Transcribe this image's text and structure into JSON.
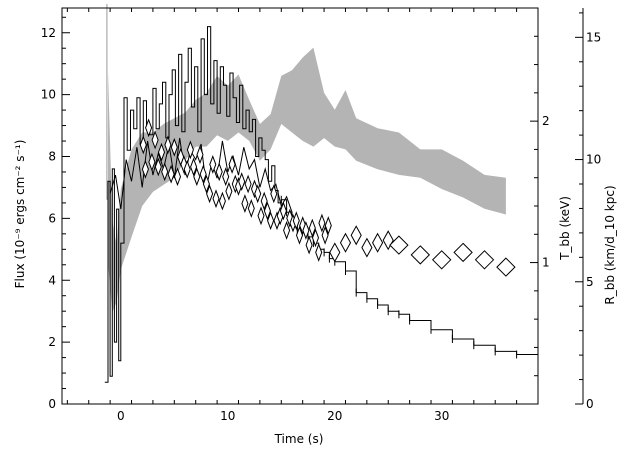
{
  "chart_data": {
    "type": "line",
    "title": "",
    "xlabel": "Time (s)",
    "ylabel_left": "Flux (10⁻⁹ ergs cm⁻² s⁻¹)",
    "ylabel_right_inner": "T_bb (keV)",
    "ylabel_right_outer": "R_bb (km/d_10 kpc)",
    "xlim": [
      -5.5,
      39
    ],
    "ylim_left": [
      0,
      12.8
    ],
    "ylim_T": [
      0,
      2.8
    ],
    "ylim_R": [
      0,
      16.2
    ],
    "x_ticks": [
      0,
      10,
      20,
      30
    ],
    "y_left_ticks": [
      0,
      2,
      4,
      6,
      8,
      10,
      12
    ],
    "T_ticks": [
      1,
      2
    ],
    "R_ticks": [
      0,
      5,
      10,
      15
    ],
    "grid": false,
    "series": [
      {
        "style": "black-steps",
        "x": [
          -1.5,
          -1.2,
          -1.0,
          -0.8,
          -0.6,
          -0.4,
          -0.2,
          0,
          0.3,
          0.6,
          0.9,
          1.2,
          1.5,
          1.8,
          2.1,
          2.4,
          2.7,
          3,
          3.3,
          3.6,
          3.9,
          4.2,
          4.5,
          4.8,
          5.1,
          5.4,
          5.7,
          6,
          6.3,
          6.6,
          6.9,
          7.2,
          7.5,
          7.8,
          8.1,
          8.4,
          8.7,
          9,
          9.3,
          9.6,
          9.9,
          10.2,
          10.5,
          10.8,
          11.1,
          11.4,
          11.7,
          12,
          12.3,
          12.6,
          12.9,
          13.2,
          13.5,
          13.8,
          14.1,
          14.4,
          14.7,
          15,
          15.5,
          16,
          16.5,
          17,
          17.5,
          18,
          18.5,
          19,
          19.5,
          20,
          21,
          22,
          23,
          24,
          25,
          26,
          27,
          29,
          31,
          33,
          35,
          37,
          39
        ],
        "y": [
          0.7,
          7.2,
          0.9,
          7.6,
          2.0,
          6.3,
          1.4,
          5.2,
          9.9,
          8.2,
          9.5,
          8.9,
          9.9,
          8.4,
          9.8,
          9.0,
          8.7,
          10.2,
          8.9,
          9.7,
          10.4,
          8.6,
          10.0,
          10.8,
          9.0,
          11.3,
          8.8,
          10.4,
          11.5,
          9.6,
          10.9,
          8.8,
          11.8,
          10.0,
          12.2,
          9.7,
          11.1,
          9.4,
          10.9,
          10.3,
          9.3,
          10.7,
          9.9,
          9.1,
          10.3,
          8.9,
          9.5,
          8.8,
          9.2,
          8.0,
          8.6,
          8.2,
          7.9,
          7.2,
          7.7,
          6.9,
          6.5,
          6.6,
          6.2,
          6.0,
          5.6,
          5.7,
          5.4,
          5.2,
          5.0,
          4.9,
          4.7,
          4.6,
          4.3,
          3.6,
          3.4,
          3.2,
          3.0,
          2.9,
          2.7,
          2.4,
          2.1,
          1.9,
          1.7,
          1.6,
          1.4
        ]
      },
      {
        "style": "black-zigzag",
        "x": [
          -1.0,
          -0.5,
          0,
          0.5,
          1,
          1.5,
          2,
          2.5,
          3,
          3.5,
          4,
          4.5,
          5,
          5.5,
          6,
          6.5,
          7,
          7.5,
          8,
          8.5,
          9,
          9.5,
          10,
          10.5,
          11,
          11.5,
          12,
          12.5,
          13,
          13.5,
          14,
          14.5,
          15,
          15.5,
          16
        ],
        "y": [
          6.8,
          7.4,
          6.3,
          7.9,
          7.2,
          8.3,
          7.0,
          8.5,
          7.4,
          8.1,
          7.6,
          8.4,
          7.3,
          8.6,
          7.4,
          8.2,
          7.9,
          8.4,
          7.0,
          7.8,
          7.3,
          8.5,
          7.5,
          8.0,
          7.4,
          8.3,
          7.6,
          7.9,
          7.0,
          7.6,
          6.9,
          7.1,
          6.4,
          6.7,
          6.2
        ]
      },
      {
        "style": "gray-band",
        "name": "T_bb",
        "x": [
          -1.2,
          -0.8,
          -0.4,
          0,
          1,
          2,
          3,
          4,
          5,
          6,
          7,
          8,
          9,
          10,
          11,
          12,
          13,
          14,
          15,
          16,
          17,
          18,
          19,
          20,
          21,
          22,
          24,
          26,
          28,
          30,
          32,
          34,
          36
        ],
        "low": [
          1.0,
          0.65,
          0.72,
          0.95,
          1.18,
          1.4,
          1.5,
          1.55,
          1.6,
          1.72,
          1.82,
          1.82,
          1.9,
          1.86,
          1.92,
          1.86,
          1.72,
          1.8,
          1.98,
          1.92,
          1.86,
          1.82,
          1.88,
          1.82,
          1.8,
          1.72,
          1.66,
          1.62,
          1.6,
          1.52,
          1.46,
          1.38,
          1.34
        ],
        "high": [
          2.35,
          1.3,
          1.12,
          1.52,
          1.8,
          1.92,
          1.92,
          1.98,
          2.02,
          2.06,
          2.15,
          2.2,
          2.32,
          2.25,
          2.33,
          2.15,
          1.98,
          2.05,
          2.32,
          2.36,
          2.45,
          2.52,
          2.2,
          2.08,
          2.22,
          2.02,
          1.95,
          1.92,
          1.8,
          1.8,
          1.72,
          1.62,
          1.6
        ]
      },
      {
        "style": "diamonds",
        "name": "R_bb",
        "x": [
          2.1,
          2.3,
          2.6,
          2.9,
          3.2,
          3.5,
          3.8,
          4.1,
          4.4,
          4.7,
          5.0,
          5.3,
          5.6,
          5.9,
          6.2,
          6.5,
          6.8,
          7.1,
          7.4,
          7.7,
          8.0,
          8.3,
          8.6,
          8.9,
          9.2,
          9.5,
          9.8,
          10.1,
          10.4,
          10.7,
          11.0,
          11.3,
          11.6,
          11.9,
          12.2,
          12.5,
          12.8,
          13.1,
          13.4,
          13.7,
          14.0,
          14.3,
          14.6,
          14.9,
          15.2,
          15.5,
          15.8,
          16.1,
          16.4,
          16.7,
          17.0,
          17.3,
          17.6,
          17.9,
          18.2,
          18.5,
          18.8,
          19.1,
          19.4,
          20.0,
          21.0,
          22.0,
          23.0,
          24.0,
          25.0,
          26.0,
          28.0,
          30.0,
          32.0,
          34.0,
          36.0
        ],
        "y": [
          10.6,
          9.6,
          11.3,
          9.9,
          10.8,
          9.7,
          10.3,
          9.5,
          10.6,
          9.4,
          10.5,
          9.3,
          10.1,
          9.8,
          9.6,
          10.4,
          9.7,
          9.3,
          10.2,
          9.4,
          9.0,
          8.6,
          9.8,
          8.4,
          9.5,
          8.3,
          9.3,
          8.7,
          9.8,
          9.0,
          8.9,
          9.1,
          8.2,
          9.0,
          8.0,
          8.8,
          8.6,
          7.7,
          8.3,
          7.9,
          7.5,
          8.6,
          7.5,
          7.7,
          7.9,
          7.1,
          7.6,
          7.4,
          7.5,
          6.9,
          7.3,
          7.1,
          6.5,
          7.2,
          6.8,
          6.2,
          7.4,
          6.9,
          7.3,
          6.2,
          6.6,
          6.9,
          6.4,
          6.6,
          6.7,
          6.5,
          6.1,
          5.9,
          6.2,
          5.9,
          5.6
        ]
      }
    ]
  }
}
